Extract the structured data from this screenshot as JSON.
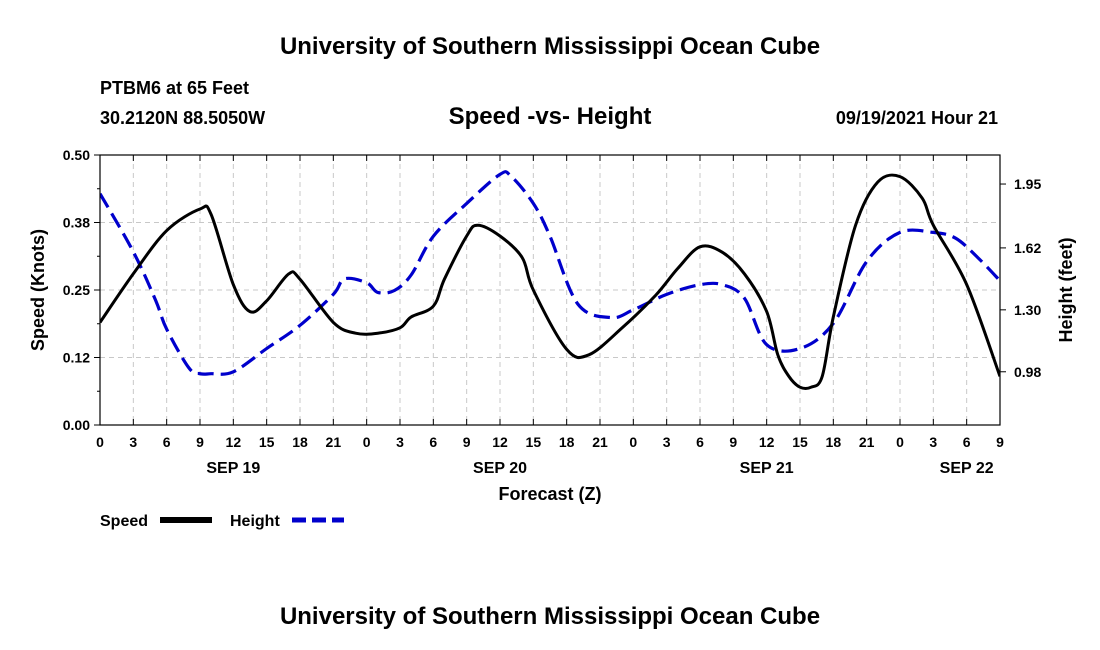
{
  "header": {
    "title_top": "University of Southern Mississippi Ocean Cube",
    "station": "PTBM6 at 65 Feet",
    "coords": "30.2120N  88.5050W",
    "chart_title": "Speed -vs- Height",
    "datetime": "09/19/2021 Hour 21",
    "title_bottom": "University of Southern Mississippi Ocean Cube"
  },
  "colors": {
    "speed": "#000000",
    "height": "#0000cc",
    "grid": "#c8c8c8"
  },
  "chart_data": {
    "type": "line",
    "title": "Speed -vs- Height",
    "xlabel": "Forecast (Z)",
    "ylabel": "Speed (Knots)",
    "y2label": "Height (feet)",
    "ylim": [
      0,
      0.5
    ],
    "y2lim": [
      0.705,
      2.1
    ],
    "yticks": [
      "0.00",
      "0.12",
      "0.25",
      "0.38",
      "0.50"
    ],
    "yticks_values": [
      0,
      0.125,
      0.25,
      0.375,
      0.5
    ],
    "y2ticks": [
      "0.98",
      "1.30",
      "1.62",
      "1.95"
    ],
    "y2ticks_values": [
      0.98,
      1.3,
      1.62,
      1.95
    ],
    "xlim": [
      0,
      81
    ],
    "x_hours": [
      0,
      3,
      6,
      9,
      12,
      15,
      18,
      21,
      24,
      27,
      30,
      33,
      36,
      39,
      42,
      45,
      48,
      51,
      54,
      57,
      60,
      63,
      66,
      69,
      72,
      75,
      78,
      81
    ],
    "x_tick_labels": [
      "0",
      "3",
      "6",
      "9",
      "12",
      "15",
      "18",
      "21",
      "0",
      "3",
      "6",
      "9",
      "12",
      "15",
      "18",
      "21",
      "0",
      "3",
      "6",
      "9",
      "12",
      "15",
      "18",
      "21",
      "0",
      "3",
      "6",
      "9"
    ],
    "date_labels": [
      {
        "hour": 12,
        "label": "SEP 19"
      },
      {
        "hour": 36,
        "label": "SEP 20"
      },
      {
        "hour": 60,
        "label": "SEP 21"
      },
      {
        "hour": 78,
        "label": "SEP 22"
      }
    ],
    "series": [
      {
        "name": "Speed",
        "axis": "left",
        "x": [
          0,
          3,
          6,
          9,
          10,
          12,
          13.5,
          15,
          17,
          18,
          21,
          23,
          25,
          27,
          28,
          30,
          31,
          33,
          34,
          36,
          38,
          39,
          42,
          44,
          47,
          50,
          52,
          54,
          56,
          58,
          60,
          61,
          62,
          63,
          64,
          65,
          66,
          68,
          70,
          72,
          74,
          75,
          78,
          81
        ],
        "values": [
          0.19,
          0.28,
          0.36,
          0.4,
          0.39,
          0.26,
          0.21,
          0.23,
          0.28,
          0.27,
          0.19,
          0.17,
          0.17,
          0.18,
          0.2,
          0.22,
          0.27,
          0.35,
          0.37,
          0.35,
          0.31,
          0.25,
          0.14,
          0.13,
          0.18,
          0.24,
          0.29,
          0.33,
          0.32,
          0.28,
          0.21,
          0.13,
          0.09,
          0.07,
          0.07,
          0.09,
          0.2,
          0.37,
          0.45,
          0.46,
          0.42,
          0.37,
          0.26,
          0.09
        ]
      },
      {
        "name": "Height",
        "axis": "right",
        "x": [
          0,
          3,
          5,
          6,
          8,
          9,
          10,
          12,
          15,
          18,
          21,
          22,
          24,
          25,
          26.5,
          28,
          30,
          33,
          36,
          37,
          39,
          40.5,
          43,
          46,
          48,
          51,
          54,
          56,
          58,
          60,
          63,
          66,
          69,
          72,
          75,
          77,
          79,
          81
        ],
        "values": [
          1.9,
          1.6,
          1.35,
          1.2,
          1.0,
          0.97,
          0.97,
          0.98,
          1.1,
          1.22,
          1.38,
          1.46,
          1.44,
          1.39,
          1.4,
          1.48,
          1.68,
          1.85,
          2.0,
          1.99,
          1.85,
          1.68,
          1.33,
          1.26,
          1.3,
          1.38,
          1.43,
          1.43,
          1.36,
          1.12,
          1.1,
          1.23,
          1.55,
          1.7,
          1.7,
          1.67,
          1.57,
          1.45
        ]
      }
    ]
  },
  "legend": {
    "speed_label": "Speed",
    "height_label": "Height"
  }
}
